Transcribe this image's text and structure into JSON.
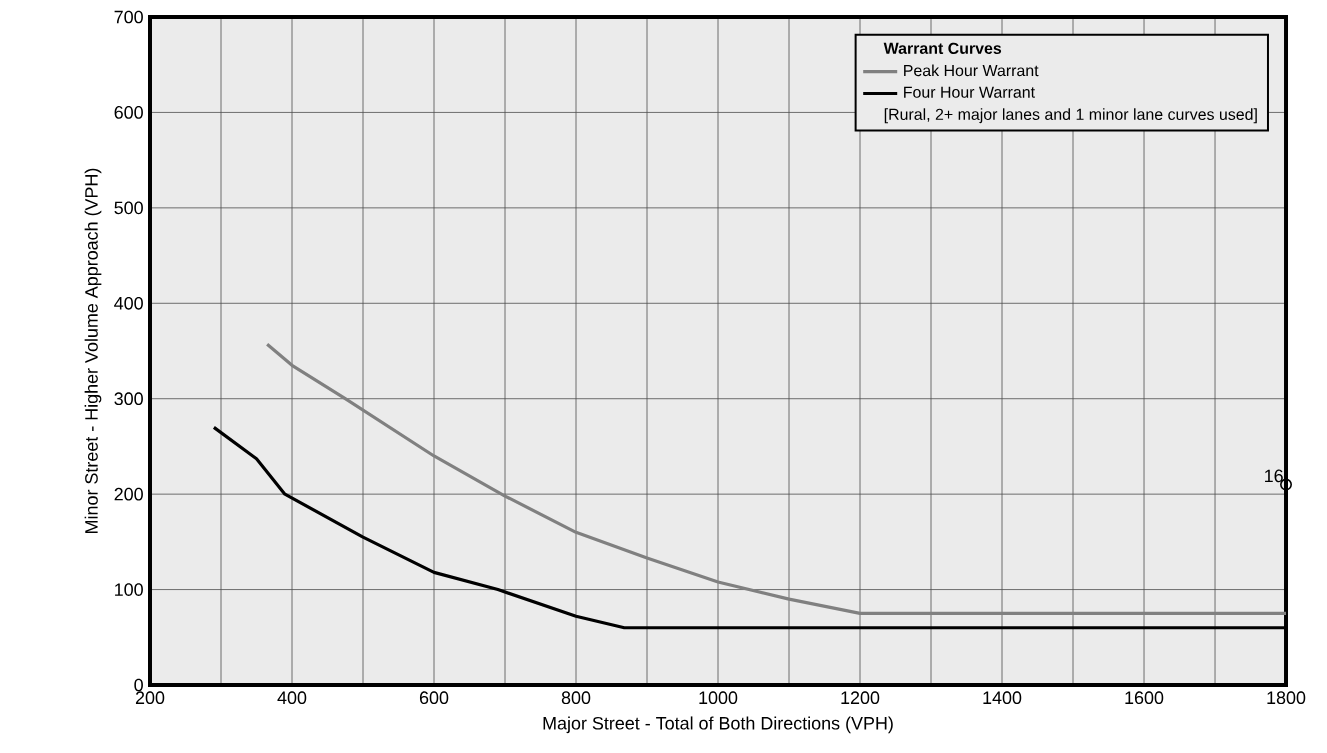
{
  "chart_data": {
    "type": "line",
    "xlabel": "Major Street - Total of Both Directions (VPH)",
    "ylabel": "Minor Street - Higher Volume Approach (VPH)",
    "legend_title": "Warrant Curves",
    "series": [
      {
        "name": "Peak Hour Warrant",
        "color": "#808080",
        "x": [
          365,
          400,
          475,
          600,
          700,
          800,
          900,
          1000,
          1100,
          1200,
          1800
        ],
        "values": [
          357,
          335,
          300,
          240,
          198,
          160,
          133,
          108,
          90,
          75,
          75
        ]
      },
      {
        "name": "Four Hour Warrant",
        "color": "#000000",
        "x": [
          290,
          350,
          390,
          500,
          600,
          690,
          800,
          868,
          1800
        ],
        "values": [
          270,
          237,
          200,
          155,
          118,
          100,
          72,
          60,
          60
        ]
      },
      {
        "type": "scatter",
        "color": "#000000",
        "marker": "circle",
        "x": [
          1800
        ],
        "values": [
          210
        ]
      }
    ],
    "annotations": [
      {
        "text": "16",
        "x": 1800,
        "y": 210
      },
      "[Rural,  2+ major lanes and 1 minor lane curves used]"
    ],
    "xlim": [
      200,
      1800
    ],
    "ylim": [
      0,
      700
    ],
    "xticks": [
      200,
      {
        "value": 300,
        "label": null
      },
      400,
      {
        "value": 500,
        "label": null
      },
      600,
      {
        "value": 700,
        "label": null
      },
      800,
      {
        "value": 900,
        "label": null
      },
      1000,
      {
        "value": 1100,
        "label": null
      },
      1200,
      {
        "value": 1300,
        "label": null
      },
      1400,
      {
        "value": 1500,
        "label": null
      },
      1600,
      {
        "value": 1700,
        "label": null
      },
      1800
    ],
    "yticks": [
      0,
      100,
      200,
      300,
      400,
      500,
      600,
      700
    ],
    "grid": true,
    "legend": "top right",
    "marker": "none",
    "line_style": "solid"
  }
}
